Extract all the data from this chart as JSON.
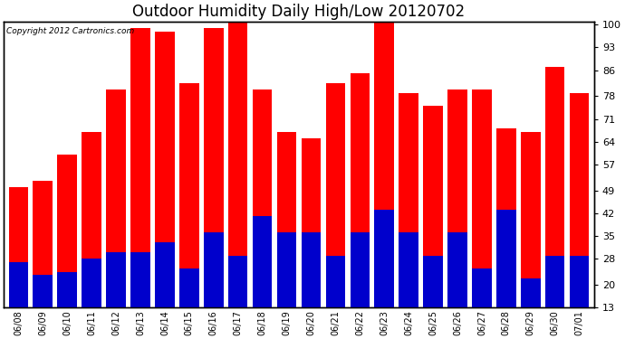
{
  "title": "Outdoor Humidity Daily High/Low 20120702",
  "copyright": "Copyright 2012 Cartronics.com",
  "dates": [
    "06/08",
    "06/09",
    "06/10",
    "06/11",
    "06/12",
    "06/13",
    "06/14",
    "06/15",
    "06/16",
    "06/17",
    "06/18",
    "06/19",
    "06/20",
    "06/21",
    "06/22",
    "06/23",
    "06/24",
    "06/25",
    "06/26",
    "06/27",
    "06/28",
    "06/29",
    "06/30",
    "07/01"
  ],
  "highs": [
    50,
    52,
    60,
    67,
    80,
    99,
    98,
    82,
    99,
    101,
    80,
    67,
    65,
    82,
    85,
    101,
    79,
    75,
    80,
    80,
    68,
    67,
    87,
    79
  ],
  "lows": [
    27,
    23,
    24,
    28,
    30,
    30,
    33,
    25,
    36,
    29,
    41,
    36,
    36,
    29,
    36,
    43,
    36,
    29,
    36,
    25,
    43,
    22,
    29,
    29
  ],
  "high_color": "#ff0000",
  "low_color": "#0000cc",
  "background_color": "#ffffff",
  "plot_bg_color": "#ffffff",
  "grid_color": "#aaaaaa",
  "ylim": [
    13,
    101
  ],
  "yticks": [
    13,
    20,
    28,
    35,
    42,
    49,
    57,
    64,
    71,
    78,
    86,
    93,
    100
  ],
  "title_fontsize": 12,
  "bar_width": 0.8
}
